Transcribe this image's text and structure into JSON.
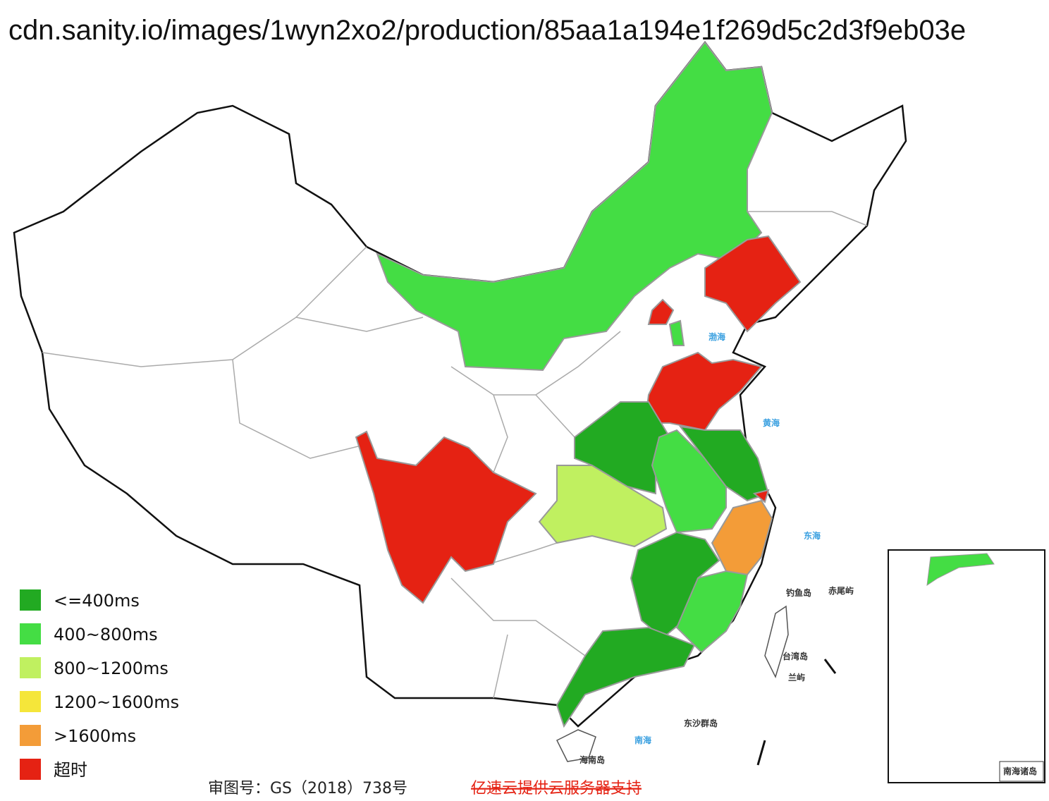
{
  "title": "cdn.sanity.io/images/1wyn2xo2/production/85aa1a194e1f269d5c2d3f9eb03e",
  "legend": [
    {
      "label": "<=400ms",
      "color": "#22aa22"
    },
    {
      "label": "400~800ms",
      "color": "#44dd44"
    },
    {
      "label": "800~1200ms",
      "color": "#c0f060"
    },
    {
      "label": "1200~1600ms",
      "color": "#f5e63a"
    },
    {
      "label": ">1600ms",
      "color": "#f39c38"
    },
    {
      "label": "超时",
      "color": "#e52213"
    }
  ],
  "map_labels": [
    "渤海",
    "黄海",
    "东海",
    "钓鱼岛",
    "赤尾屿",
    "台湾岛",
    "兰屿",
    "东沙群岛",
    "南海",
    "海南岛",
    "南海诸岛"
  ],
  "footer": {
    "approval": "审图号：GS（2018）738号",
    "sponsor": "亿速云提供云服务器支持"
  }
}
